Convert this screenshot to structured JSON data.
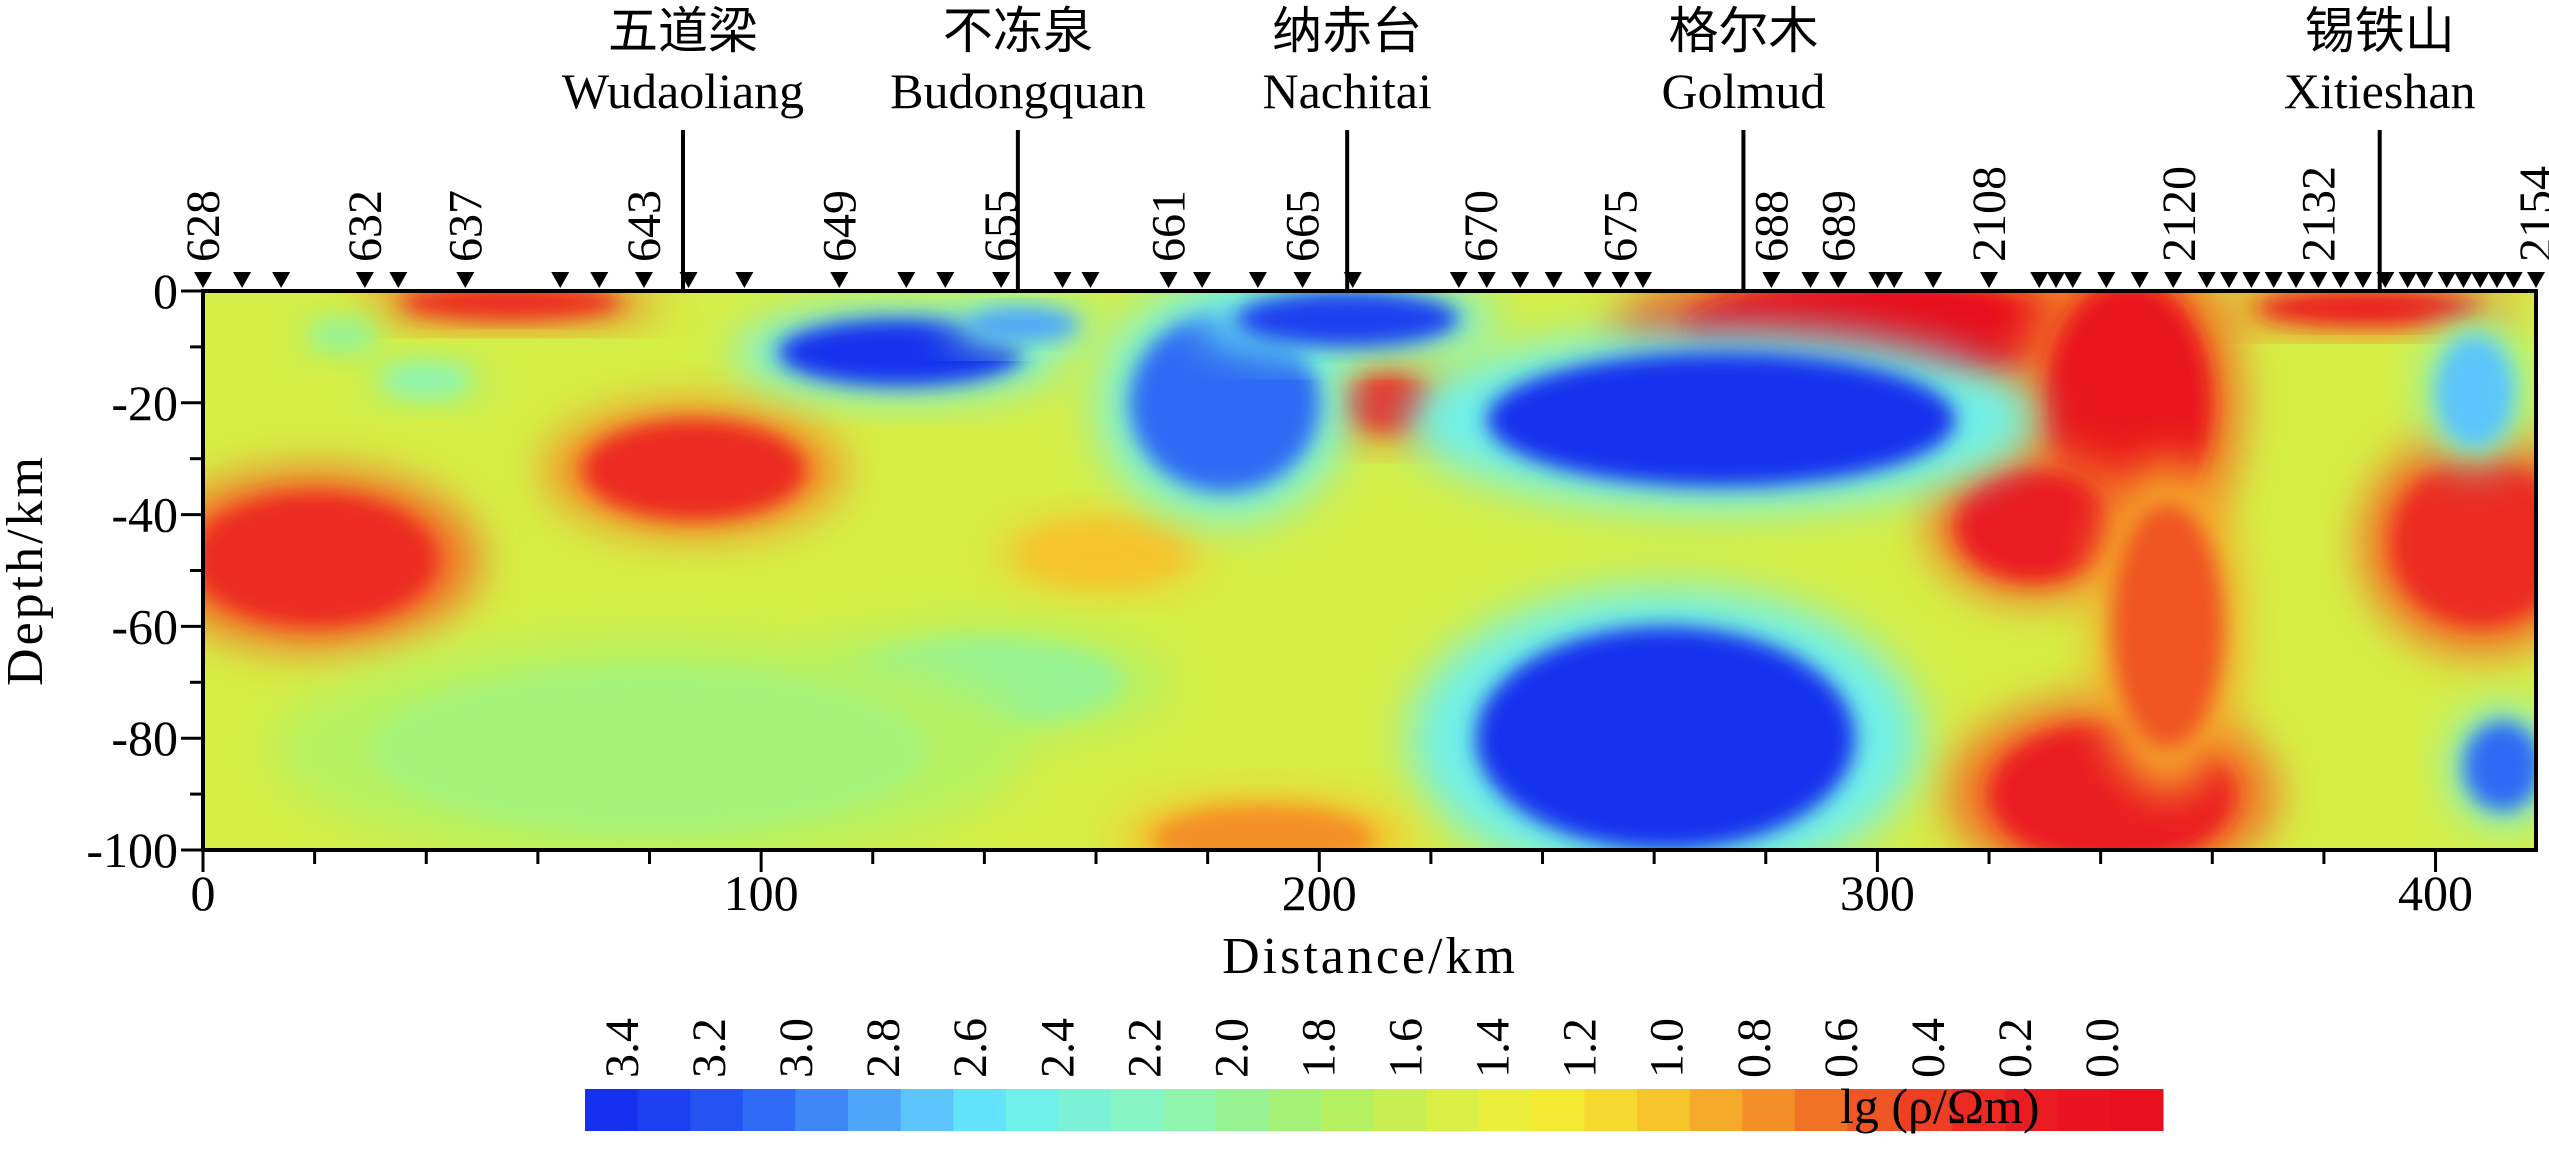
{
  "chart_data": {
    "type": "heatmap",
    "title": "",
    "xlabel": "Distance/km",
    "ylabel": "Depth/km",
    "xlim": [
      0,
      418
    ],
    "ylim": [
      -100,
      0
    ],
    "x_ticks": [
      0,
      100,
      200,
      300,
      400
    ],
    "y_ticks": [
      0,
      -20,
      -40,
      -60,
      -80,
      -100
    ],
    "y_tick_labels": [
      "0",
      "-20",
      "-40",
      "-60",
      "-80",
      "-100"
    ],
    "colorbar": {
      "label": "lg (ρ/Ωm)",
      "tick_labels": [
        "3.4",
        "3.2",
        "3.0",
        "2.8",
        "2.6",
        "2.4",
        "2.2",
        "2.0",
        "1.8",
        "1.6",
        "1.4",
        "1.2",
        "1.0",
        "0.8",
        "0.6",
        "0.4",
        "0.2",
        "0.0"
      ],
      "colors": [
        "#1530ee",
        "#1c3ff0",
        "#2453f2",
        "#2f6bf4",
        "#3f87f7",
        "#4fa5f9",
        "#5bc5fb",
        "#62e2fb",
        "#6ff0e9",
        "#7bf2d6",
        "#86f4c4",
        "#8ff4ad",
        "#98f392",
        "#a6f279",
        "#b5f060",
        "#c7ef51",
        "#d9ef46",
        "#ebef3c",
        "#f3ea34",
        "#f5d92e",
        "#f6c42b",
        "#f5ab29",
        "#f48f27",
        "#f27225",
        "#f05524",
        "#ee3f23",
        "#ec2a22",
        "#ea1c21",
        "#e9141f",
        "#e8101e"
      ]
    },
    "towns": [
      {
        "cn": "五道梁",
        "en": "Wudaoliang",
        "x": 86
      },
      {
        "cn": "不冻泉",
        "en": "Budongquan",
        "x": 146
      },
      {
        "cn": "纳赤台",
        "en": "Nachitai",
        "x": 205
      },
      {
        "cn": "格尔木",
        "en": "Golmud",
        "x": 276
      },
      {
        "cn": "锡铁山",
        "en": "Xitieshan",
        "x": 390
      }
    ],
    "station_labels": [
      {
        "label": "628",
        "x": 0
      },
      {
        "label": "632",
        "x": 29
      },
      {
        "label": "637",
        "x": 47
      },
      {
        "label": "643",
        "x": 79
      },
      {
        "label": "649",
        "x": 114
      },
      {
        "label": "655",
        "x": 143
      },
      {
        "label": "661",
        "x": 173
      },
      {
        "label": "665",
        "x": 197
      },
      {
        "label": "670",
        "x": 229
      },
      {
        "label": "675",
        "x": 254
      },
      {
        "label": "688",
        "x": 281
      },
      {
        "label": "689",
        "x": 293
      },
      {
        "label": "2108",
        "x": 320
      },
      {
        "label": "2120",
        "x": 354
      },
      {
        "label": "2132",
        "x": 379
      },
      {
        "label": "2154",
        "x": 418
      }
    ],
    "station_markers": [
      0,
      7,
      14,
      29,
      35,
      47,
      64,
      71,
      79,
      87,
      97,
      114,
      126,
      133,
      143,
      154,
      159,
      173,
      179,
      189,
      197,
      206,
      225,
      230,
      236,
      242,
      249,
      254,
      258,
      281,
      288,
      293,
      300,
      303,
      310,
      320,
      329,
      332,
      335,
      341,
      347,
      353,
      359,
      363,
      367,
      371,
      375,
      379,
      383,
      387,
      391,
      395,
      398,
      402,
      405,
      408,
      411,
      414,
      418
    ],
    "anomalies": [
      {
        "x": 20,
        "y": -48,
        "rx": 22,
        "ry": 12,
        "value": 0.3
      },
      {
        "x": 88,
        "y": -32,
        "rx": 20,
        "ry": 9,
        "value": 0.4
      },
      {
        "x": 55,
        "y": -2,
        "rx": 20,
        "ry": 3,
        "value": 0.3
      },
      {
        "x": 212,
        "y": -20,
        "rx": 8,
        "ry": 5,
        "value": 0.3
      },
      {
        "x": 161,
        "y": -47,
        "rx": 14,
        "ry": 5,
        "value": 1.0
      },
      {
        "x": 300,
        "y": -7,
        "rx": 35,
        "ry": 9,
        "value": 0.0
      },
      {
        "x": 345,
        "y": -20,
        "rx": 15,
        "ry": 22,
        "value": 0.1
      },
      {
        "x": 328,
        "y": -42,
        "rx": 14,
        "ry": 10,
        "value": 0.2
      },
      {
        "x": 342,
        "y": -90,
        "rx": 22,
        "ry": 13,
        "value": 0.2
      },
      {
        "x": 352,
        "y": -60,
        "rx": 10,
        "ry": 22,
        "value": 0.6
      },
      {
        "x": 408,
        "y": -45,
        "rx": 16,
        "ry": 15,
        "value": 0.3
      },
      {
        "x": 388,
        "y": -3,
        "rx": 20,
        "ry": 3,
        "value": 0.2
      },
      {
        "x": 125,
        "y": -11,
        "rx": 22,
        "ry": 6,
        "value": 3.4
      },
      {
        "x": 183,
        "y": -20,
        "rx": 17,
        "ry": 16,
        "value": 3.1
      },
      {
        "x": 205,
        "y": -5,
        "rx": 20,
        "ry": 5,
        "value": 3.3
      },
      {
        "x": 272,
        "y": -23,
        "rx": 42,
        "ry": 12,
        "value": 3.4
      },
      {
        "x": 262,
        "y": -80,
        "rx": 34,
        "ry": 20,
        "value": 3.4
      },
      {
        "x": 407,
        "y": -18,
        "rx": 7,
        "ry": 10,
        "value": 2.7
      },
      {
        "x": 412,
        "y": -85,
        "rx": 7,
        "ry": 8,
        "value": 3.0
      },
      {
        "x": 147,
        "y": -6,
        "rx": 10,
        "ry": 3,
        "value": 2.8
      },
      {
        "x": 25,
        "y": -8,
        "rx": 6,
        "ry": 3,
        "value": 2.0
      },
      {
        "x": 40,
        "y": -16,
        "rx": 8,
        "ry": 3,
        "value": 2.1
      },
      {
        "x": 140,
        "y": -70,
        "rx": 25,
        "ry": 8,
        "value": 2.0
      },
      {
        "x": 80,
        "y": -82,
        "rx": 50,
        "ry": 15,
        "value": 1.9
      },
      {
        "x": 190,
        "y": -98,
        "rx": 20,
        "ry": 6,
        "value": 0.8
      }
    ]
  }
}
